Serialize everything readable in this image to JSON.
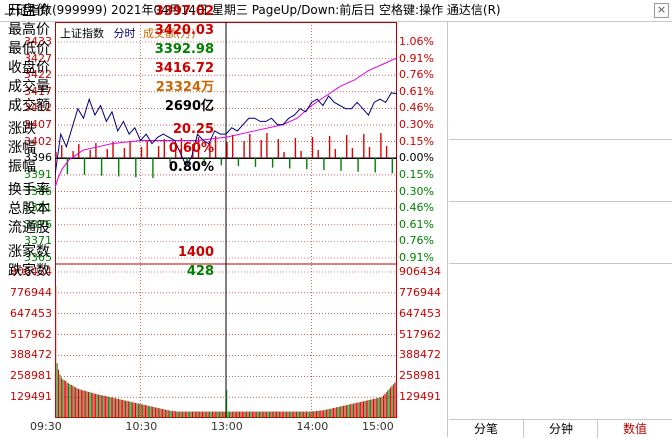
{
  "title": "上证指数(999999)  2021年04月14日  星期三  PageUp/Down:前后日  空格键:操作  通达信(R)",
  "close_label": "×",
  "legend": {
    "name": "上证指数",
    "time": "分时",
    "vol": "成交额(万)"
  },
  "colors": {
    "up": "#e00000",
    "down": "#008000",
    "price": "#000080",
    "avg": "#e000e0",
    "grid": "#bb0000",
    "ref": "#000000"
  },
  "price_axis": {
    "left": [
      "3433",
      "3427",
      "3422",
      "3417",
      "3412",
      "3407",
      "3402",
      "3396",
      "3391",
      "3386",
      "3381",
      "3376",
      "3371",
      "3365"
    ],
    "right": [
      "1.06%",
      "0.91%",
      "0.76%",
      "0.61%",
      "0.46%",
      "0.30%",
      "0.15%",
      "0.00%",
      "0.15%",
      "0.30%",
      "0.46%",
      "0.61%",
      "0.76%",
      "0.91%"
    ],
    "colors": [
      "up",
      "up",
      "up",
      "up",
      "up",
      "up",
      "up",
      "ref",
      "down",
      "down",
      "down",
      "down",
      "down",
      "down"
    ]
  },
  "volume_axis": [
    "906434",
    "776944",
    "647453",
    "517962",
    "388472",
    "258981",
    "129491"
  ],
  "time_axis": [
    "09:30",
    "10:30",
    "13:00",
    "14:00",
    "15:00"
  ],
  "chart_data": {
    "type": "line",
    "prev_close": 3396.47,
    "ylim": [
      3365,
      3433
    ],
    "vol_max": 906434,
    "price_x": [
      0,
      4,
      8,
      12,
      16,
      20,
      24,
      28,
      32,
      36,
      40,
      44,
      48,
      52,
      56,
      60,
      64,
      68,
      72,
      76,
      80,
      84,
      88,
      92,
      96,
      100,
      104,
      108,
      112,
      116,
      120,
      124,
      128,
      132,
      136,
      140,
      144,
      148,
      152,
      156,
      160,
      164,
      168,
      172,
      176,
      180,
      184,
      188,
      192,
      196,
      200,
      204,
      208,
      212,
      216,
      220,
      224,
      228,
      232,
      236,
      240
    ],
    "price": [
      3391,
      3404,
      3400,
      3406,
      3412,
      3409,
      3415,
      3410,
      3413,
      3408,
      3411,
      3405,
      3408,
      3404,
      3406,
      3402,
      3404,
      3401,
      3403,
      3404,
      3403,
      3402,
      3398,
      3394,
      3397,
      3404,
      3402,
      3401,
      3405,
      3404,
      3404,
      3406,
      3405,
      3407,
      3409,
      3409,
      3408,
      3408,
      3409,
      3407,
      3407,
      3409,
      3410,
      3412,
      3411,
      3414,
      3415,
      3413,
      3416,
      3414,
      3413,
      3412,
      3412,
      3414,
      3412,
      3410,
      3414,
      3415,
      3414,
      3417,
      3416.7
    ],
    "avg_x": [
      0,
      2,
      5,
      10,
      20,
      30,
      40,
      60,
      80,
      100,
      120,
      140,
      160,
      170,
      180,
      190,
      200,
      210,
      220,
      230,
      240
    ],
    "avg": [
      3387,
      3390,
      3393,
      3396,
      3399,
      3400,
      3401,
      3402,
      3402,
      3402,
      3403,
      3405,
      3407,
      3409,
      3413,
      3416,
      3419,
      3421,
      3424,
      3426,
      3428
    ],
    "volume": [
      820000,
      340000,
      300000,
      270000,
      250000,
      240000,
      235000,
      230000,
      220000,
      215000,
      210000,
      205000,
      200000,
      195000,
      190000,
      185000,
      180000,
      178000,
      175000,
      172000,
      170000,
      168000,
      165000,
      162000,
      160000,
      158000,
      155000,
      152000,
      150000,
      148000,
      146000,
      144000,
      142000,
      140000,
      138000,
      136000,
      134000,
      132000,
      130000,
      128000,
      126000,
      124000,
      122000,
      120000,
      118000,
      116000,
      114000,
      112000,
      110000,
      108000,
      106000,
      104000,
      102000,
      100000,
      98000,
      96000,
      94000,
      92000,
      90000,
      88000,
      86000,
      84000,
      82000,
      80000,
      78000,
      76000,
      74000,
      72000,
      70000,
      68000,
      66000,
      64000,
      62000,
      60000,
      58000,
      56000,
      54000,
      52000,
      50000,
      48000,
      46000,
      45000,
      44000,
      43000,
      42000,
      41000,
      40000,
      40000,
      40000,
      40000,
      40000,
      40000,
      40000,
      40000,
      40000,
      40000,
      40000,
      40000,
      40000,
      40000,
      40000,
      40000,
      40000,
      40000,
      40000,
      40000,
      40000,
      40000,
      40000,
      40000,
      40000,
      40000,
      40000,
      40000,
      40000,
      40000,
      40000,
      40000,
      40000,
      40000,
      175000,
      40000,
      40000,
      40000,
      40000,
      40000,
      40000,
      40000,
      40000,
      40000,
      40000,
      40000,
      40000,
      40000,
      40000,
      40000,
      40000,
      40000,
      40000,
      40000,
      40000,
      40000,
      40000,
      40000,
      40000,
      40000,
      40000,
      40000,
      40000,
      40000,
      40000,
      40000,
      40000,
      40000,
      40000,
      40000,
      40000,
      40000,
      40000,
      40000,
      40000,
      40000,
      40000,
      40000,
      40000,
      40000,
      40000,
      40000,
      40000,
      40000,
      40000,
      40000,
      40000,
      40000,
      40000,
      40000,
      40000,
      40000,
      40000,
      40000,
      42000,
      42000,
      42000,
      44000,
      44000,
      46000,
      46000,
      48000,
      48000,
      50000,
      52000,
      54000,
      56000,
      58000,
      60000,
      62000,
      64000,
      66000,
      68000,
      70000,
      72000,
      74000,
      76000,
      78000,
      80000,
      82000,
      84000,
      86000,
      88000,
      90000,
      92000,
      94000,
      96000,
      98000,
      100000,
      102000,
      104000,
      106000,
      108000,
      110000,
      112000,
      114000,
      116000,
      118000,
      120000,
      122000,
      124000,
      126000,
      128000,
      130000,
      140000,
      150000,
      160000,
      170000,
      180000,
      190000,
      200000,
      210000,
      220000,
      230000
    ]
  },
  "panel": {
    "rows": [
      {
        "k": "开盘价",
        "v": "3397.02",
        "c": "up"
      },
      {
        "k": "最高价",
        "v": "3420.03",
        "c": "up"
      },
      {
        "k": "最低价",
        "v": "3392.98",
        "c": "down"
      },
      {
        "k": "收盘价",
        "v": "3416.72",
        "c": "up"
      },
      {
        "k": "成交量",
        "v": "23324万",
        "c": "vol"
      },
      {
        "k": "成交额",
        "v": "2690亿",
        "c": "ref"
      },
      {
        "k": "涨跌",
        "v": "20.25",
        "c": "up"
      },
      {
        "k": "涨幅",
        "v": "0.60%",
        "c": "up"
      },
      {
        "k": "振幅",
        "v": "0.80%",
        "c": "ref"
      },
      {
        "k": "换手率",
        "v": "",
        "c": "ref"
      },
      {
        "k": "总股本",
        "v": "",
        "c": "ref"
      },
      {
        "k": "流通股",
        "v": "",
        "c": "ref"
      },
      {
        "k": "涨家数",
        "v": "1400",
        "c": "up"
      },
      {
        "k": "跌家数",
        "v": "428",
        "c": "down"
      }
    ],
    "vol_color": "#cc6600"
  },
  "tabs": [
    "分笔",
    "分钟",
    "数值"
  ]
}
